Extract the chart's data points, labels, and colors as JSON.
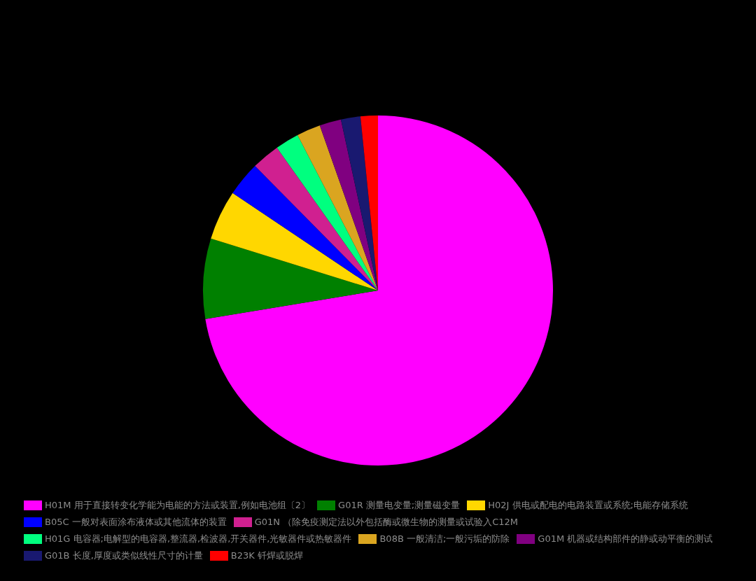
{
  "chart_data": {
    "type": "pie",
    "legend": "bottom",
    "categories": [
      "H01M 用于直接转变化学能为电能的方法或装置,例如电池组〔2〕",
      "G01R 测量电变量;测量磁变量",
      "H02J 供电或配电的电路装置或系统;电能存储系统",
      "B05C 一般对表面涂布液体或其他流体的装置",
      "G01N （除免疫测定法以外包括酶或微生物的测量或试验入C12M",
      "H01G 电容器;电解型的电容器,整流器,检波器,开关器件,光敏器件或热敏器件",
      "B08B 一般清洁;一般污垢的防除",
      "G01M 机器或结构部件的静或动平衡的测试",
      "G01B 长度,厚度或类似线性尺寸的计量",
      "B23K 钎焊或脱焊"
    ],
    "values": [
      72.4,
      7.4,
      4.6,
      3.2,
      2.6,
      2.2,
      2.2,
      2.0,
      1.8,
      1.6
    ],
    "colors": [
      "#ff00ff",
      "#008000",
      "#ffd700",
      "#0000ff",
      "#d02090",
      "#00ff7f",
      "#daa520",
      "#800080",
      "#191970",
      "#ff0000"
    ]
  }
}
